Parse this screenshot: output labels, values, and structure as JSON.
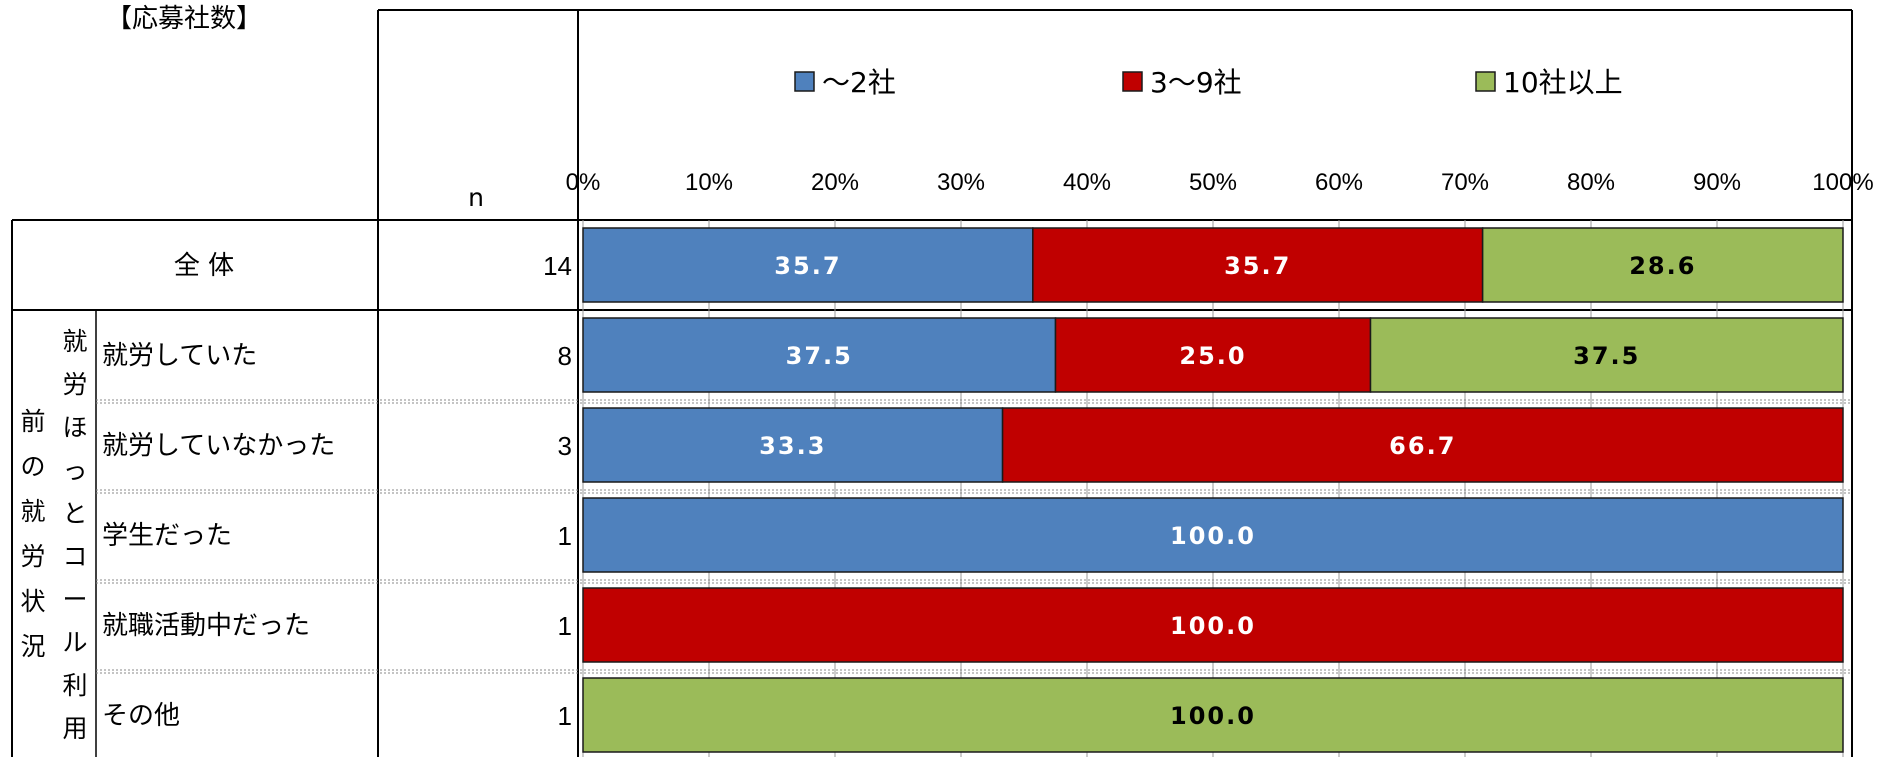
{
  "page": {
    "caption": "【応募社数】"
  },
  "table": {
    "n_header": "n",
    "group_label": "前の就労状況",
    "group_sublabel": "就労ほっとコール利用"
  },
  "chart_data": {
    "type": "bar",
    "orientation": "horizontal",
    "stacked": true,
    "percent": true,
    "xlim": [
      0,
      100
    ],
    "ticks": [
      "0%",
      "10%",
      "20%",
      "30%",
      "40%",
      "50%",
      "60%",
      "70%",
      "80%",
      "90%",
      "100%"
    ],
    "grid": true,
    "legend": "top",
    "categories": [
      "全 体",
      "就労していた",
      "就労していなかった",
      "学生だった",
      "就職活動中だった",
      "その他"
    ],
    "n": [
      14,
      8,
      3,
      1,
      1,
      1
    ],
    "series": [
      {
        "name": "～2社",
        "color": "#4f81bd",
        "label_color": "#ffffff",
        "values": [
          35.7,
          37.5,
          33.3,
          100.0,
          0,
          0
        ]
      },
      {
        "name": "3～9社",
        "color": "#c00000",
        "label_color": "#ffffff",
        "values": [
          35.7,
          25.0,
          66.7,
          0,
          100.0,
          0
        ]
      },
      {
        "name": "10社以上",
        "color": "#9bbb59",
        "label_color": "#000000",
        "values": [
          28.6,
          37.5,
          0,
          0,
          0,
          100.0
        ]
      }
    ],
    "data_labels": [
      [
        "35.7",
        "37.5",
        "33.3",
        "100.0",
        "",
        ""
      ],
      [
        "35.7",
        "25.0",
        "66.7",
        "",
        "100.0",
        ""
      ],
      [
        "28.6",
        "37.5",
        "",
        "",
        "",
        "100.0"
      ]
    ]
  }
}
